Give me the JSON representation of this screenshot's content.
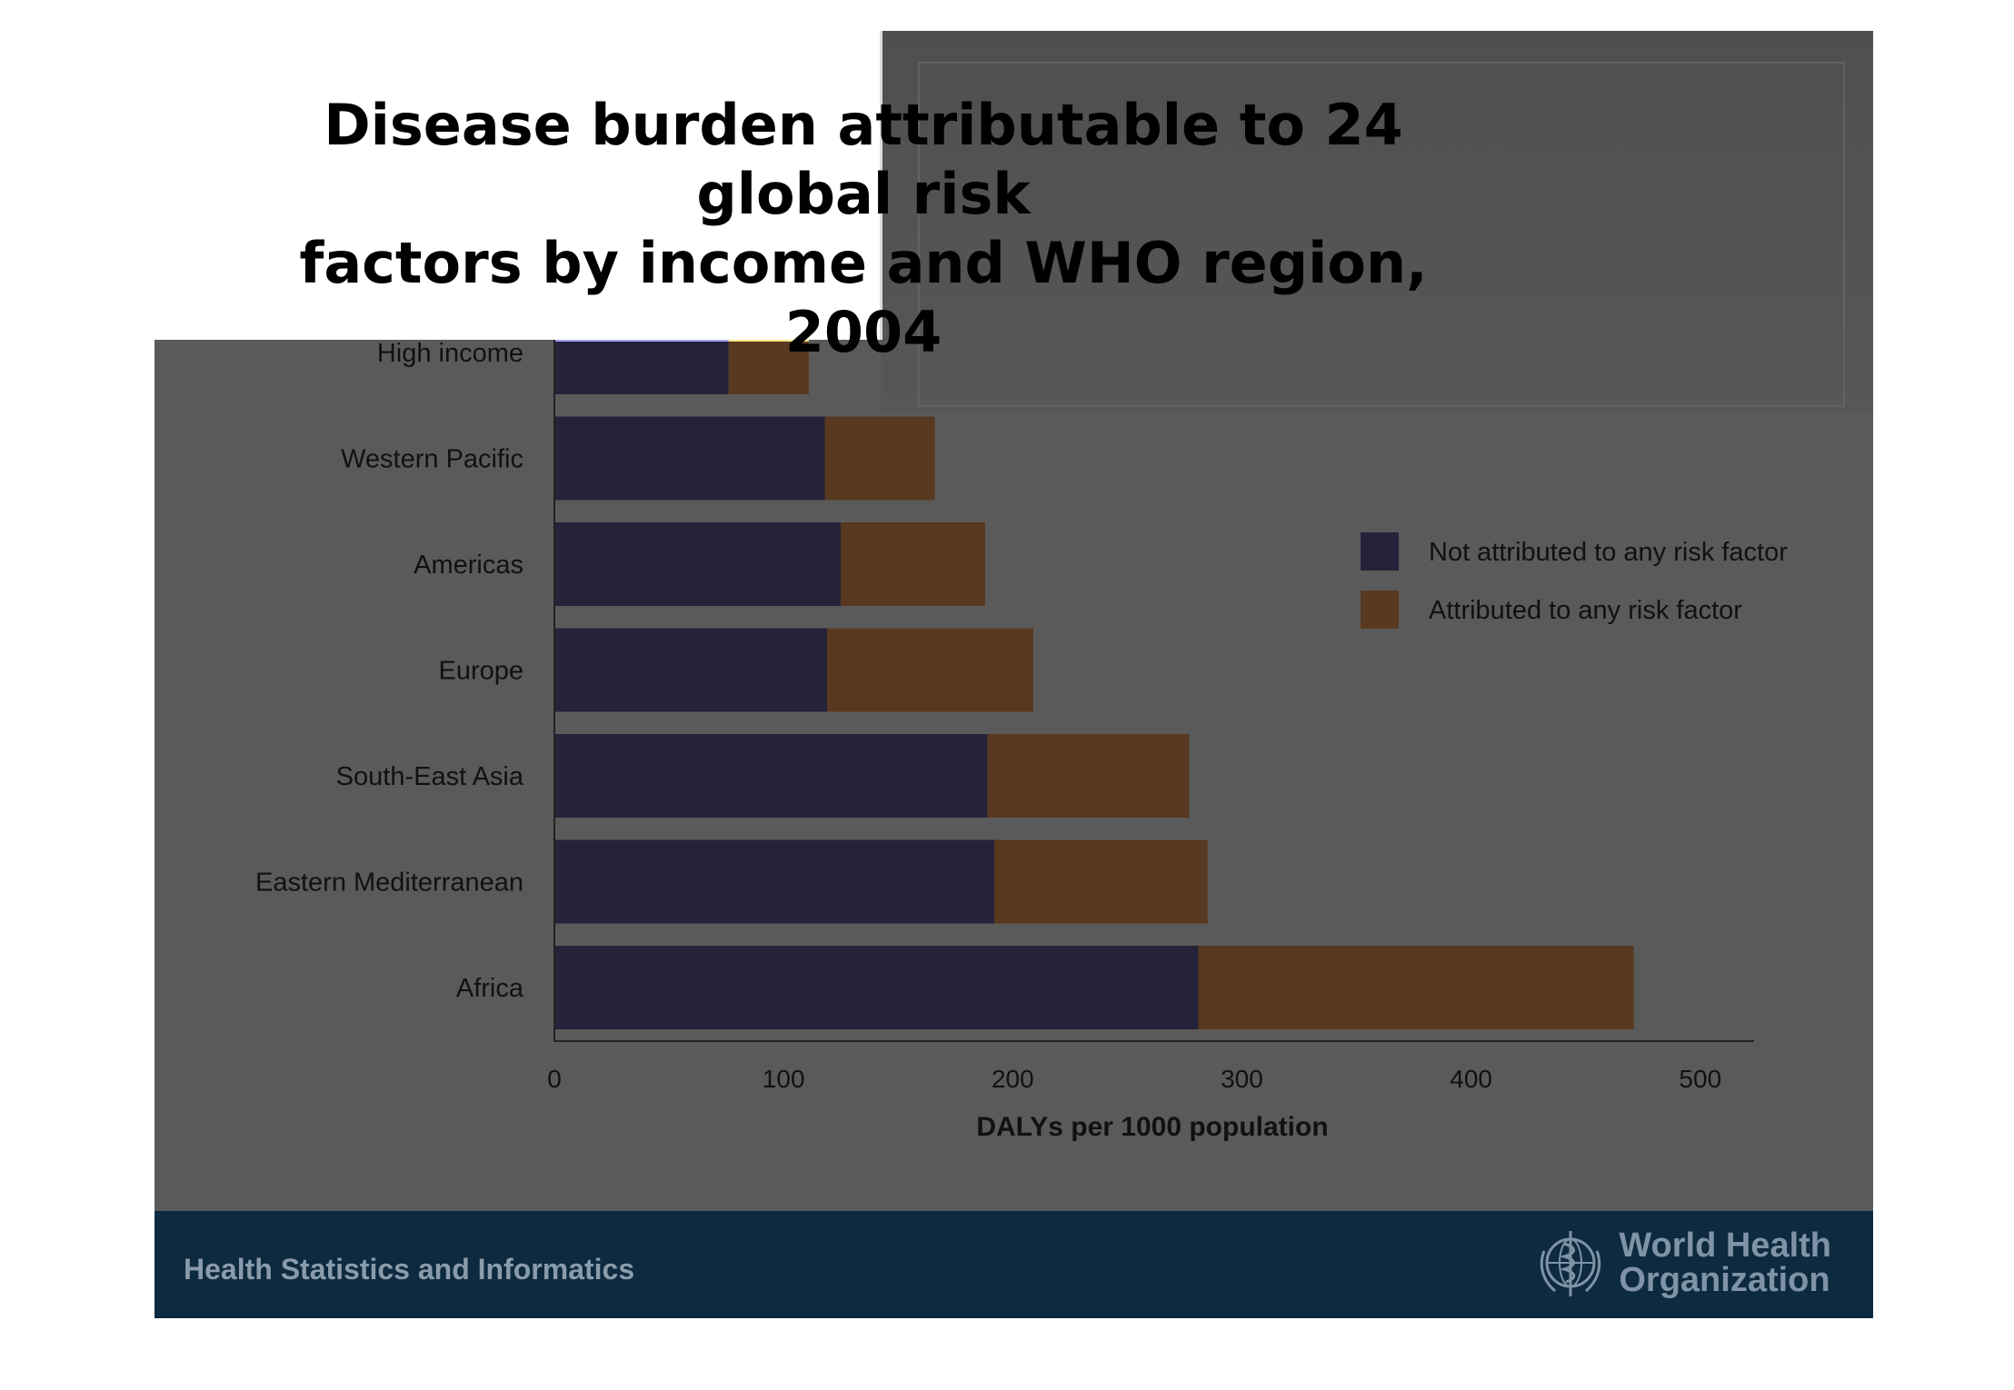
{
  "title_line1": "Disease burden attributable to 24 global risk",
  "title_line2": "factors by income and WHO region, 2004",
  "chart_data": {
    "type": "bar",
    "orientation": "horizontal",
    "stacked": true,
    "categories": [
      "High income",
      "Western Pacific",
      "Americas",
      "Europe",
      "South-East Asia",
      "Eastern Mediterranean",
      "Africa"
    ],
    "series": [
      {
        "name": "Not attributed to any risk factor",
        "color": "#24233a",
        "values": [
          76,
          118,
          125,
          119,
          189,
          192,
          281
        ]
      },
      {
        "name": "Attributed to any risk factor",
        "color": "#583920",
        "values": [
          35,
          48,
          63,
          90,
          88,
          93,
          190
        ]
      }
    ],
    "xlabel": "DALYs per 1000 population",
    "xlim": [
      0,
      510
    ],
    "xticks": [
      0,
      100,
      200,
      300,
      400,
      500
    ],
    "legend_position": "right",
    "grid": false
  },
  "highlight_colors": {
    "not_attributed": "#a7a3f4",
    "attributed": "#fde57f"
  },
  "footer": {
    "text": "Health Statistics and Informatics",
    "org_line1": "World Health",
    "org_line2": "Organization"
  }
}
